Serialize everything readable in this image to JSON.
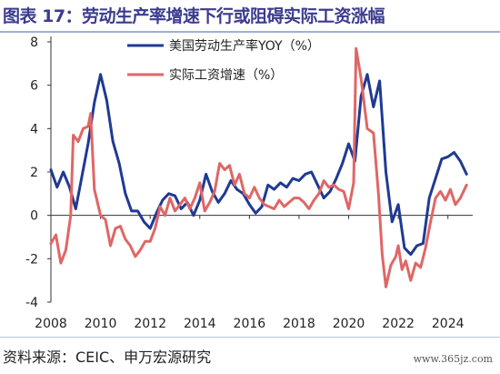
{
  "header": {
    "title": "图表 17：劳动生产率增速下行或阻碍实际工资涨幅"
  },
  "footer": {
    "source": "资料来源：CEIC、申万宏源研究",
    "watermark": "www.365jz.com"
  },
  "colors": {
    "title": "#3b3b8f",
    "series1": "#1f3a93",
    "series2": "#e06666"
  },
  "chart_data": {
    "type": "line",
    "title": "",
    "xlabel": "",
    "ylabel": "",
    "xlim": [
      2008,
      2025
    ],
    "ylim": [
      -4,
      8
    ],
    "x_ticks": [
      2008,
      2010,
      2012,
      2014,
      2016,
      2018,
      2020,
      2022,
      2024
    ],
    "y_ticks": [
      -4,
      -2,
      0,
      2,
      4,
      6,
      8
    ],
    "grid": false,
    "legend_position": "top-center",
    "series": [
      {
        "name": "美国劳动生产率YOY（%）",
        "color": "#1f3a93",
        "points": [
          [
            2008.0,
            2.1
          ],
          [
            2008.25,
            1.3
          ],
          [
            2008.5,
            2.0
          ],
          [
            2008.75,
            1.3
          ],
          [
            2009.0,
            0.3
          ],
          [
            2009.25,
            1.8
          ],
          [
            2009.5,
            3.3
          ],
          [
            2009.75,
            5.2
          ],
          [
            2010.0,
            6.5
          ],
          [
            2010.25,
            5.3
          ],
          [
            2010.5,
            3.4
          ],
          [
            2010.75,
            2.4
          ],
          [
            2011.0,
            1.0
          ],
          [
            2011.25,
            0.2
          ],
          [
            2011.5,
            0.2
          ],
          [
            2011.75,
            -0.3
          ],
          [
            2012.0,
            -0.6
          ],
          [
            2012.25,
            0.1
          ],
          [
            2012.5,
            0.7
          ],
          [
            2012.75,
            1.0
          ],
          [
            2013.0,
            0.9
          ],
          [
            2013.25,
            0.3
          ],
          [
            2013.5,
            0.6
          ],
          [
            2013.75,
            0.0
          ],
          [
            2014.0,
            0.7
          ],
          [
            2014.25,
            1.9
          ],
          [
            2014.5,
            1.1
          ],
          [
            2014.75,
            0.6
          ],
          [
            2015.0,
            1.0
          ],
          [
            2015.25,
            1.6
          ],
          [
            2015.5,
            1.2
          ],
          [
            2015.75,
            1.0
          ],
          [
            2016.0,
            0.5
          ],
          [
            2016.25,
            0.1
          ],
          [
            2016.5,
            0.4
          ],
          [
            2016.75,
            1.4
          ],
          [
            2017.0,
            1.2
          ],
          [
            2017.25,
            1.5
          ],
          [
            2017.5,
            1.3
          ],
          [
            2017.75,
            1.7
          ],
          [
            2018.0,
            1.6
          ],
          [
            2018.25,
            1.9
          ],
          [
            2018.5,
            2.0
          ],
          [
            2018.75,
            1.4
          ],
          [
            2019.0,
            0.8
          ],
          [
            2019.25,
            1.1
          ],
          [
            2019.5,
            1.7
          ],
          [
            2019.75,
            2.4
          ],
          [
            2020.0,
            3.3
          ],
          [
            2020.25,
            2.5
          ],
          [
            2020.5,
            5.5
          ],
          [
            2020.75,
            6.5
          ],
          [
            2021.0,
            5.0
          ],
          [
            2021.25,
            6.2
          ],
          [
            2021.5,
            2.0
          ],
          [
            2021.75,
            -0.3
          ],
          [
            2022.0,
            0.5
          ],
          [
            2022.25,
            -1.5
          ],
          [
            2022.5,
            -1.8
          ],
          [
            2022.75,
            -1.4
          ],
          [
            2023.0,
            -1.3
          ],
          [
            2023.25,
            0.8
          ],
          [
            2023.5,
            1.7
          ],
          [
            2023.75,
            2.6
          ],
          [
            2024.0,
            2.7
          ],
          [
            2024.25,
            2.9
          ],
          [
            2024.5,
            2.5
          ],
          [
            2024.75,
            1.9
          ]
        ]
      },
      {
        "name": "实际工资增速（%）",
        "color": "#e06666",
        "points": [
          [
            2008.0,
            -1.3
          ],
          [
            2008.2,
            -0.9
          ],
          [
            2008.4,
            -2.2
          ],
          [
            2008.6,
            -1.6
          ],
          [
            2008.8,
            0.0
          ],
          [
            2008.9,
            3.7
          ],
          [
            2009.1,
            3.4
          ],
          [
            2009.3,
            4.0
          ],
          [
            2009.5,
            4.1
          ],
          [
            2009.6,
            4.7
          ],
          [
            2009.75,
            1.2
          ],
          [
            2010.0,
            0.0
          ],
          [
            2010.2,
            -0.2
          ],
          [
            2010.4,
            -1.4
          ],
          [
            2010.6,
            -0.6
          ],
          [
            2010.8,
            -0.5
          ],
          [
            2011.0,
            -1.1
          ],
          [
            2011.2,
            -1.4
          ],
          [
            2011.4,
            -1.9
          ],
          [
            2011.6,
            -1.6
          ],
          [
            2011.8,
            -1.2
          ],
          [
            2012.0,
            -1.2
          ],
          [
            2012.2,
            -0.6
          ],
          [
            2012.4,
            0.4
          ],
          [
            2012.6,
            0.0
          ],
          [
            2012.8,
            0.8
          ],
          [
            2013.0,
            0.2
          ],
          [
            2013.2,
            0.5
          ],
          [
            2013.4,
            0.8
          ],
          [
            2013.6,
            0.3
          ],
          [
            2013.8,
            0.8
          ],
          [
            2014.0,
            1.5
          ],
          [
            2014.2,
            0.2
          ],
          [
            2014.4,
            0.6
          ],
          [
            2014.6,
            1.1
          ],
          [
            2014.8,
            2.4
          ],
          [
            2015.0,
            2.1
          ],
          [
            2015.2,
            2.3
          ],
          [
            2015.4,
            1.4
          ],
          [
            2015.6,
            1.9
          ],
          [
            2015.8,
            1.0
          ],
          [
            2016.0,
            0.8
          ],
          [
            2016.2,
            1.3
          ],
          [
            2016.4,
            0.8
          ],
          [
            2016.6,
            0.5
          ],
          [
            2016.8,
            0.4
          ],
          [
            2017.0,
            0.3
          ],
          [
            2017.2,
            0.7
          ],
          [
            2017.4,
            0.4
          ],
          [
            2017.6,
            0.6
          ],
          [
            2017.8,
            0.8
          ],
          [
            2018.0,
            0.8
          ],
          [
            2018.2,
            0.6
          ],
          [
            2018.4,
            0.3
          ],
          [
            2018.6,
            0.7
          ],
          [
            2018.8,
            1.0
          ],
          [
            2019.0,
            1.6
          ],
          [
            2019.2,
            1.3
          ],
          [
            2019.4,
            1.4
          ],
          [
            2019.6,
            1.2
          ],
          [
            2019.8,
            1.1
          ],
          [
            2020.0,
            0.3
          ],
          [
            2020.2,
            1.5
          ],
          [
            2020.3,
            7.7
          ],
          [
            2020.5,
            6.3
          ],
          [
            2020.75,
            4.0
          ],
          [
            2021.0,
            3.8
          ],
          [
            2021.2,
            1.0
          ],
          [
            2021.35,
            -1.8
          ],
          [
            2021.5,
            -3.3
          ],
          [
            2021.7,
            -2.3
          ],
          [
            2021.9,
            -1.9
          ],
          [
            2022.0,
            -1.4
          ],
          [
            2022.15,
            -2.5
          ],
          [
            2022.3,
            -2.1
          ],
          [
            2022.5,
            -3.0
          ],
          [
            2022.7,
            -2.2
          ],
          [
            2022.9,
            -2.4
          ],
          [
            2023.1,
            -1.5
          ],
          [
            2023.3,
            -0.3
          ],
          [
            2023.5,
            0.8
          ],
          [
            2023.7,
            1.1
          ],
          [
            2023.9,
            0.7
          ],
          [
            2024.1,
            1.2
          ],
          [
            2024.3,
            0.5
          ],
          [
            2024.5,
            0.8
          ],
          [
            2024.75,
            1.4
          ]
        ]
      }
    ]
  }
}
